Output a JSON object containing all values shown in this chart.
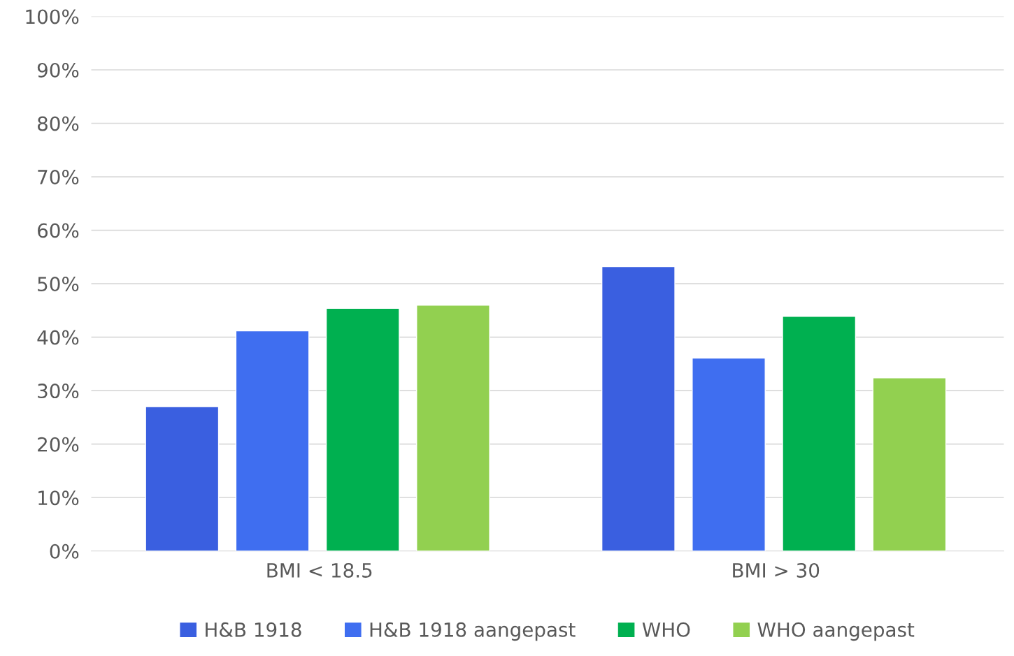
{
  "chart_data": {
    "type": "bar",
    "categories": [
      "BMI < 18.5",
      "BMI > 30"
    ],
    "series": [
      {
        "name": "H&B 1918",
        "color": "#3a5fe0",
        "values": [
          27,
          53.2
        ]
      },
      {
        "name": "H&B 1918 aangepast",
        "color": "#3f6ef0",
        "values": [
          41.2,
          36.1
        ]
      },
      {
        "name": "WHO",
        "color": "#00b050",
        "values": [
          45.4,
          43.9
        ]
      },
      {
        "name": "WHO aangepast",
        "color": "#92d050",
        "values": [
          46,
          32.4
        ]
      }
    ],
    "ylim": [
      0,
      100
    ],
    "yticks": [
      {
        "value": 0,
        "label": "0%"
      },
      {
        "value": 10,
        "label": "10%"
      },
      {
        "value": 20,
        "label": "20%"
      },
      {
        "value": 30,
        "label": "30%"
      },
      {
        "value": 40,
        "label": "40%"
      },
      {
        "value": 50,
        "label": "50%"
      },
      {
        "value": 60,
        "label": "60%"
      },
      {
        "value": 70,
        "label": "70%"
      },
      {
        "value": 80,
        "label": "80%"
      },
      {
        "value": 90,
        "label": "90%"
      },
      {
        "value": 100,
        "label": "100%"
      }
    ],
    "grid": "y",
    "legend": "bottom"
  }
}
